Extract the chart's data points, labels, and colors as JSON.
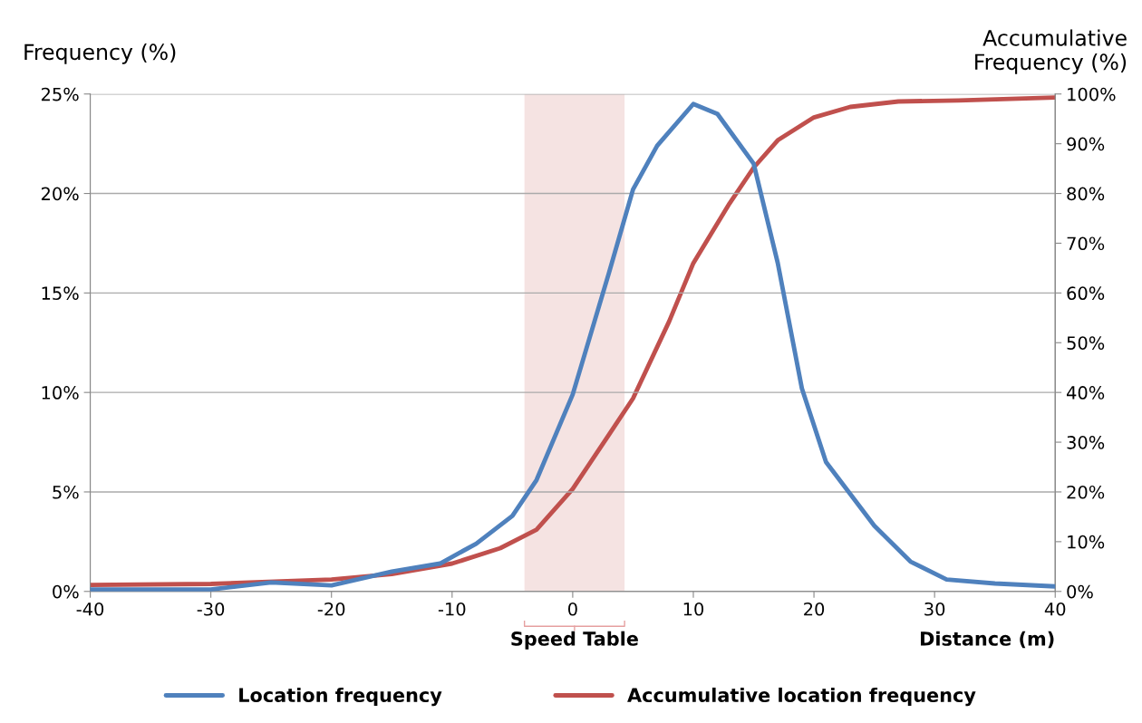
{
  "chart_data": {
    "type": "line",
    "xlabel": "Distance (m)",
    "ylabel": "Frequency (%)",
    "y2label": "Accumulative\nFrequency (%)",
    "xlim": [
      -40,
      40
    ],
    "xticks": [
      -40,
      -30,
      -20,
      -10,
      0,
      10,
      20,
      30,
      40
    ],
    "ylim": [
      0,
      25
    ],
    "yticks": [
      {
        "value": 0,
        "label": "0%"
      },
      {
        "value": 5,
        "label": "5%"
      },
      {
        "value": 10,
        "label": "10%"
      },
      {
        "value": 15,
        "label": "15%"
      },
      {
        "value": 20,
        "label": "20%"
      },
      {
        "value": 25,
        "label": "25%"
      }
    ],
    "y2lim": [
      0,
      100
    ],
    "y2ticks": [
      {
        "value": 0,
        "label": "0%"
      },
      {
        "value": 10,
        "label": "10%"
      },
      {
        "value": 20,
        "label": "20%"
      },
      {
        "value": 30,
        "label": "30%"
      },
      {
        "value": 40,
        "label": "40%"
      },
      {
        "value": 50,
        "label": "50%"
      },
      {
        "value": 60,
        "label": "60%"
      },
      {
        "value": 70,
        "label": "70%"
      },
      {
        "value": 80,
        "label": "80%"
      },
      {
        "value": 90,
        "label": "90%"
      },
      {
        "value": 100,
        "label": "100%"
      }
    ],
    "grid": "y",
    "legend": "bottom",
    "marker": "none",
    "line_style": "solid",
    "bands": [
      {
        "axis": "x",
        "from": -4,
        "to": 4.3,
        "label": "Speed Table",
        "color": "#f2dcdb"
      }
    ],
    "series": [
      {
        "name": "Location frequency",
        "color": "#4f81bd",
        "x": [
          -40,
          -30,
          -25,
          -20,
          -15,
          -11,
          -8,
          -5,
          -3,
          0,
          3,
          5,
          7,
          10,
          12,
          15,
          17,
          19,
          21,
          25,
          28,
          31,
          35,
          40
        ],
        "values": [
          0.1,
          0.1,
          0.45,
          0.3,
          1.0,
          1.4,
          2.4,
          3.8,
          5.6,
          9.9,
          16,
          20.2,
          22.4,
          24.5,
          24.0,
          21.5,
          16.5,
          10.2,
          6.5,
          3.3,
          1.5,
          0.6,
          0.4,
          0.25
        ]
      },
      {
        "name": "Accumulative location frequency",
        "color": "#c0504d",
        "axis": "y2",
        "x": [
          -40,
          -30,
          -20,
          -15,
          -10,
          -6,
          -3,
          0,
          3,
          5,
          8,
          10,
          13,
          15,
          17,
          20,
          23,
          27,
          32,
          40
        ],
        "values": [
          1.3,
          1.5,
          2.4,
          3.5,
          5.6,
          8.7,
          12.4,
          20.6,
          31.5,
          38.8,
          54.3,
          66,
          78,
          85.2,
          90.7,
          95.3,
          97.4,
          98.5,
          98.7,
          99.3
        ]
      }
    ]
  }
}
